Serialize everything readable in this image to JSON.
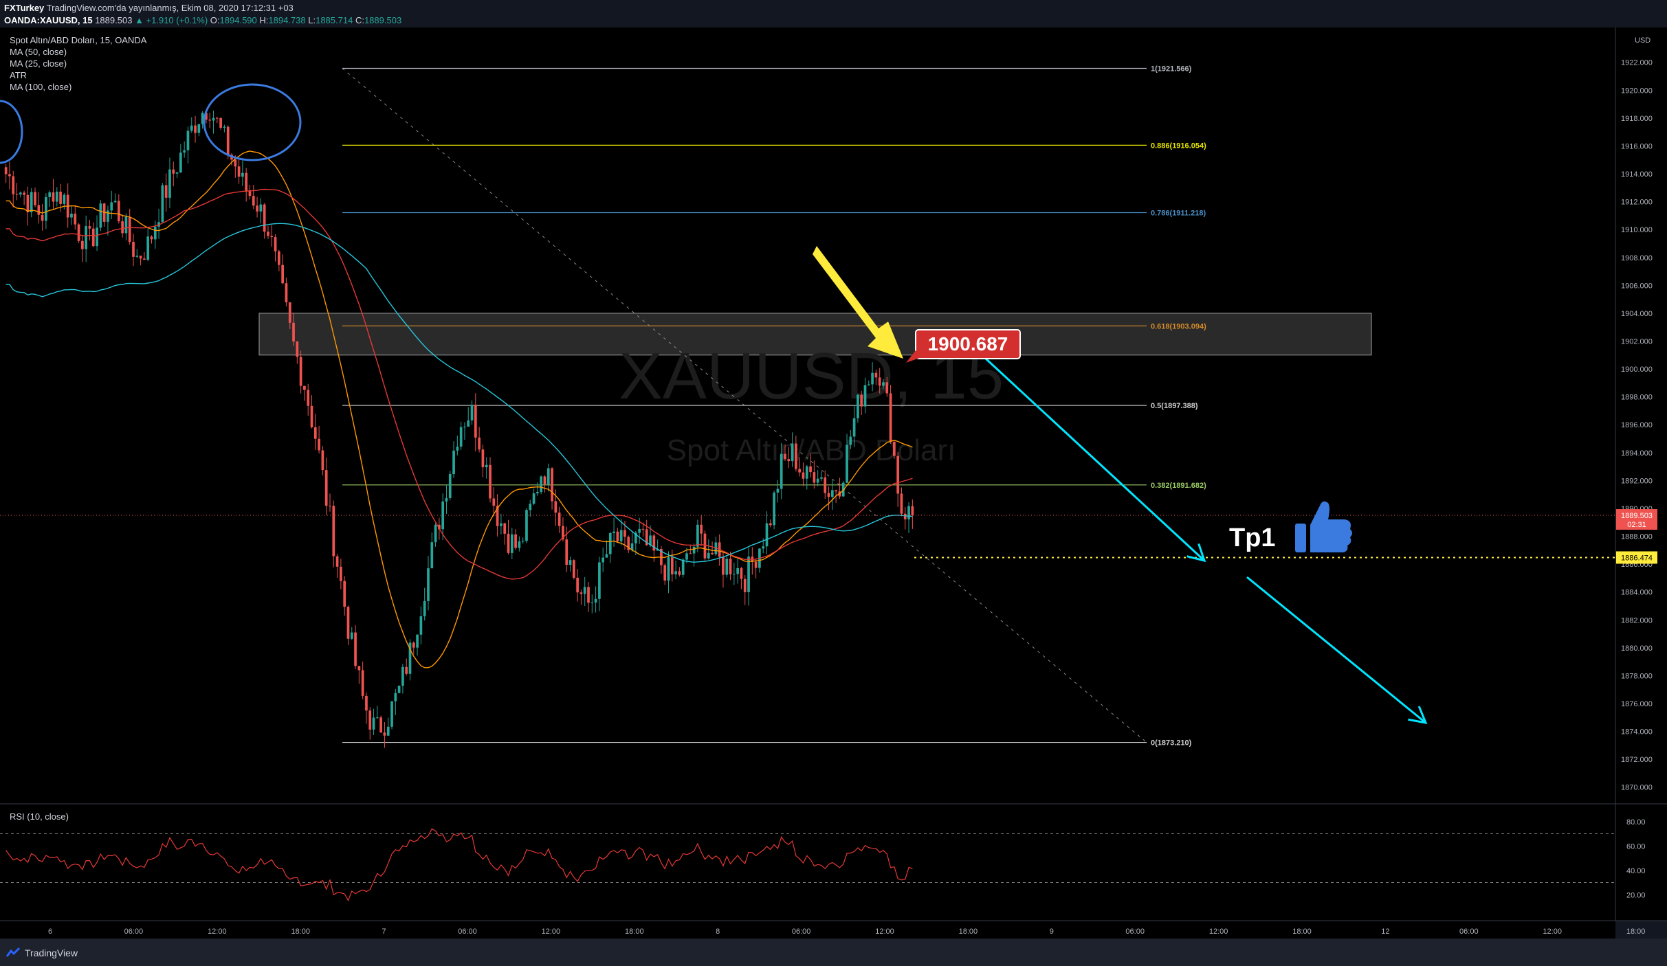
{
  "header": {
    "publisher": "FXTurkey",
    "published_text": "TradingView.com'da yayınlanmış, Ekim 08, 2020 17:12:31 +03",
    "symbol": "OANDA:XAUUSD, 15",
    "last": "1889.503",
    "change": "▲ +1.910 (+0.1%)",
    "o_label": "O:",
    "o": "1894.590",
    "h_label": "H:",
    "h": "1894.738",
    "l_label": "L:",
    "l": "1885.714",
    "c_label": "C:",
    "c": "1889.503"
  },
  "legend": {
    "title": "Spot Altın/ABD Doları, 15, OANDA",
    "ma50": "MA (50, close)",
    "ma25": "MA (25, close)",
    "atr": "ATR",
    "ma100": "MA (100, close)"
  },
  "watermark": {
    "symbol": "XAUUSD, 15",
    "name": "Spot Altın/ABD Doları"
  },
  "currency": "USD",
  "price_tag": {
    "value": "1900.687",
    "color": "#d32f2f"
  },
  "tp_label": "Tp1",
  "rsi_label": "RSI (10, close)",
  "footer": {
    "brand": "TradingView"
  },
  "colors": {
    "background": "#131722",
    "up": "#26a69a",
    "down": "#ef5350",
    "ma50": "#e53935",
    "ma25": "#ff9800",
    "ma100": "#26c6da",
    "rsi": "#e53935",
    "arrow_cyan": "#00e5ff",
    "arrow_yellow": "#ffeb3b",
    "thumb": "#3b7be0",
    "circle": "#3b7be0"
  },
  "chart_data": {
    "type": "candlestick",
    "price_axis": {
      "ticks": [
        "1922.000",
        "1920.000",
        "1918.000",
        "1916.000",
        "1914.000",
        "1912.000",
        "1910.000",
        "1908.000",
        "1906.000",
        "1904.000",
        "1902.000",
        "1900.000",
        "1898.000",
        "1896.000",
        "1894.000",
        "1892.000",
        "1890.000",
        "1888.000",
        "1886.000",
        "1884.000",
        "1882.000",
        "1880.000",
        "1878.000",
        "1876.000",
        "1874.000",
        "1872.000",
        "1870.000"
      ],
      "ylim": [
        1869.0,
        1924.5
      ]
    },
    "time_axis": {
      "ticks": [
        "6",
        "06:00",
        "12:00",
        "18:00",
        "7",
        "06:00",
        "12:00",
        "18:00",
        "8",
        "06:00",
        "12:00",
        "18:00",
        "9",
        "06:00",
        "12:00",
        "18:00",
        "12",
        "06:00",
        "12:00",
        "18:00"
      ]
    },
    "fibonacci": [
      {
        "label": "1(1921.566)",
        "price": 1921.566,
        "color": "#b2b5be"
      },
      {
        "label": "0.886(1916.054)",
        "price": 1916.054,
        "color": "#e6e600"
      },
      {
        "label": "0.786(1911.218)",
        "price": 1911.218,
        "color": "#4a90c8"
      },
      {
        "label": "0.618(1903.094)",
        "price": 1903.094,
        "color": "#d68b2a"
      },
      {
        "label": "0.5(1897.388)",
        "price": 1897.388,
        "color": "#cfcfcf"
      },
      {
        "label": "0.382(1891.682)",
        "price": 1891.682,
        "color": "#9ccc65"
      },
      {
        "label": "0(1873.210)",
        "price": 1873.21,
        "color": "#cfcfcf"
      }
    ],
    "resistance_zone": {
      "from": 1901.0,
      "to": 1904.0
    },
    "last_price": {
      "value": "1889.503",
      "time": "02:31"
    },
    "target_line": {
      "label": "1886.474",
      "value": 1886.474
    },
    "close_path": [
      1914,
      1913,
      1912,
      1911,
      1913,
      1912,
      1910,
      1909,
      1911,
      1912,
      1910,
      1908,
      1909,
      1912,
      1914,
      1916,
      1918,
      1919,
      1917,
      1915,
      1913,
      1912,
      1910,
      1906,
      1902,
      1899,
      1895,
      1890,
      1885,
      1880,
      1876,
      1874,
      1875,
      1877,
      1880,
      1884,
      1888,
      1892,
      1896,
      1897,
      1894,
      1890,
      1888,
      1887,
      1890,
      1893,
      1891,
      1887,
      1884,
      1883,
      1886,
      1888,
      1887,
      1888,
      1887,
      1886,
      1885,
      1886,
      1888,
      1887,
      1886,
      1886,
      1885,
      1887,
      1889,
      1893,
      1894,
      1892,
      1893,
      1891,
      1892,
      1896,
      1899,
      1900.5,
      1897,
      1890,
      1889.5
    ],
    "rsi": {
      "ylim": [
        10,
        90
      ],
      "ticks": [
        "80.00",
        "60.00",
        "40.00",
        "20.00"
      ],
      "levels": [
        70,
        30
      ]
    }
  }
}
